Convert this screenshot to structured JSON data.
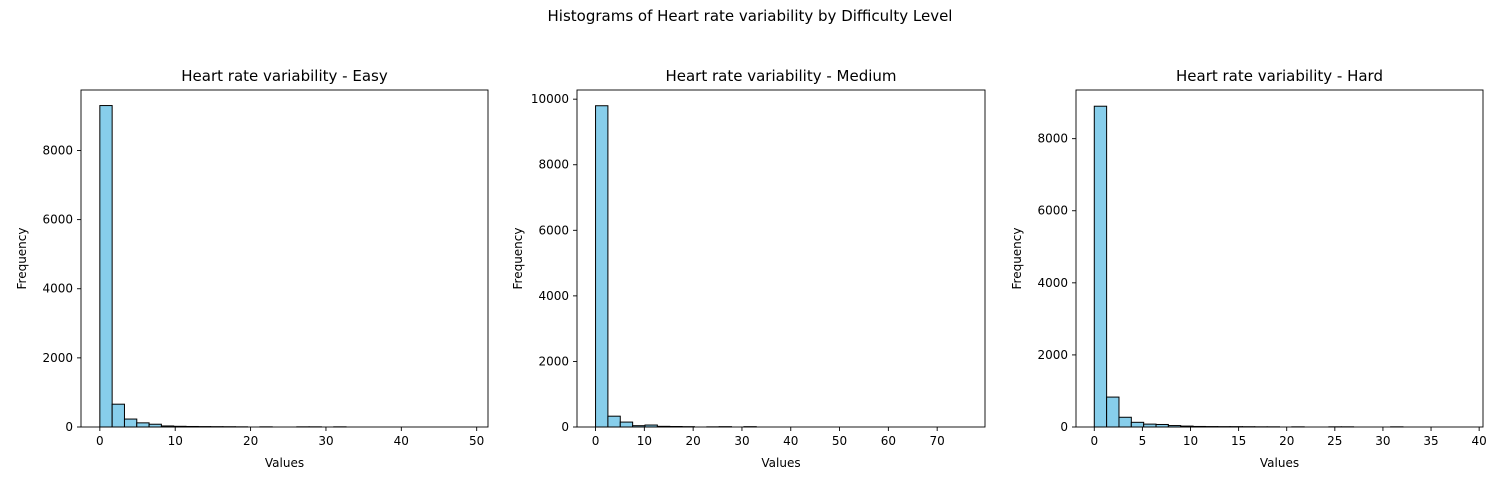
{
  "figure": {
    "title": "Histograms of Heart rate variability by Difficulty Level"
  },
  "colors": {
    "bar_fill": "#87ceeb",
    "bar_edge": "#000000",
    "axes": "#000000"
  },
  "chart_data": [
    {
      "type": "bar",
      "title": "Heart rate variability - Easy",
      "xlabel": "Values",
      "ylabel": "Frequency",
      "xlim": [
        -2.5,
        51.5
      ],
      "ylim": [
        0,
        9750
      ],
      "xticks": [
        0,
        10,
        20,
        30,
        40,
        50
      ],
      "yticks": [
        0,
        2000,
        4000,
        6000,
        8000
      ],
      "bin_edges": [
        0,
        1.633,
        3.267,
        4.9,
        6.533,
        8.167,
        9.8,
        11.433,
        13.067,
        14.7,
        16.333,
        17.967,
        19.6,
        21.233,
        22.867,
        24.5,
        26.133,
        27.767,
        29.4,
        31.033,
        32.667,
        34.3,
        35.933,
        37.567,
        39.2,
        40.833,
        42.467,
        44.1,
        45.733,
        47.367,
        49
      ],
      "counts": [
        9300,
        660,
        230,
        120,
        80,
        30,
        20,
        15,
        12,
        10,
        8,
        5,
        0,
        5,
        0,
        0,
        5,
        5,
        0,
        5,
        0,
        0,
        0,
        0,
        0,
        0,
        0,
        0,
        0,
        0
      ]
    },
    {
      "type": "bar",
      "title": "Heart rate variability - Medium",
      "xlabel": "Values",
      "ylabel": "Frequency",
      "xlim": [
        -3.8,
        79.8
      ],
      "ylim": [
        0,
        10280
      ],
      "xticks": [
        0,
        10,
        20,
        30,
        40,
        50,
        60,
        70
      ],
      "yticks": [
        0,
        2000,
        4000,
        6000,
        8000,
        10000
      ],
      "bin_edges": [
        0,
        2.533,
        5.067,
        7.6,
        10.133,
        12.667,
        15.2,
        17.733,
        20.267,
        22.8,
        25.333,
        27.867,
        30.4,
        32.933,
        35.467,
        38,
        40.533,
        43.067,
        45.6,
        48.133,
        50.667,
        53.2,
        55.733,
        58.267,
        60.8,
        63.333,
        65.867,
        68.4,
        70.933,
        73.467,
        76
      ],
      "counts": [
        9800,
        330,
        150,
        40,
        60,
        20,
        15,
        10,
        0,
        5,
        10,
        0,
        10,
        0,
        0,
        0,
        0,
        0,
        0,
        0,
        0,
        0,
        0,
        0,
        0,
        0,
        0,
        0,
        0,
        0
      ]
    },
    {
      "type": "bar",
      "title": "Heart rate variability - Hard",
      "xlabel": "Values",
      "ylabel": "Frequency",
      "xlim": [
        -1.9,
        40.4
      ],
      "ylim": [
        0,
        9350
      ],
      "xticks": [
        0,
        5,
        10,
        15,
        20,
        25,
        30,
        35,
        40
      ],
      "yticks": [
        0,
        2000,
        4000,
        6000,
        8000
      ],
      "bin_edges": [
        0,
        1.283,
        2.567,
        3.85,
        5.133,
        6.417,
        7.7,
        8.983,
        10.267,
        11.55,
        12.833,
        14.117,
        15.4,
        16.683,
        17.967,
        19.25,
        20.533,
        21.817,
        23.1,
        24.383,
        25.667,
        26.95,
        28.233,
        29.517,
        30.8,
        32.083,
        33.367,
        34.65,
        35.933,
        37.217,
        38.5
      ],
      "counts": [
        8900,
        830,
        270,
        130,
        80,
        70,
        40,
        25,
        15,
        12,
        10,
        10,
        8,
        5,
        5,
        0,
        5,
        0,
        0,
        5,
        5,
        0,
        0,
        0,
        5,
        0,
        0,
        0,
        0,
        0
      ]
    }
  ]
}
